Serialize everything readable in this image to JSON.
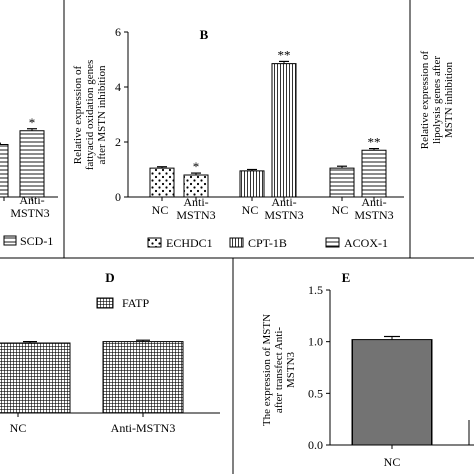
{
  "chart_data": [
    {
      "panel": "A",
      "type": "bar",
      "categories": [
        "",
        "Anti-MSTN3"
      ],
      "series": [
        {
          "name": "SCD-1",
          "values": [
            2.1,
            2.65
          ],
          "errors": [
            0.05,
            0.08
          ],
          "significance": [
            "",
            "*"
          ]
        }
      ],
      "ylim": [
        0,
        6
      ],
      "legend": [
        "SCD-1"
      ]
    },
    {
      "panel": "B",
      "type": "bar",
      "title": "B",
      "ylabel": "Relative expression of fattyacid oxidation genes after MSTN inhibition",
      "yticks": [
        "0",
        "2",
        "4",
        "6"
      ],
      "ylim": [
        0,
        6
      ],
      "group_labels": [
        [
          "NC",
          "Anti-MSTN3"
        ],
        [
          "NC",
          "Anti-MSTN3"
        ],
        [
          "NC",
          "Anti-MSTN3"
        ]
      ],
      "series": [
        {
          "name": "ECHDC1",
          "values": [
            1.05,
            0.8
          ],
          "errors": [
            0.05,
            0.07
          ],
          "significance": [
            "",
            "*"
          ]
        },
        {
          "name": "CPT-1B",
          "values": [
            0.95,
            4.85
          ],
          "errors": [
            0.05,
            0.08
          ],
          "significance": [
            "",
            "**"
          ]
        },
        {
          "name": "ACOX-1",
          "values": [
            1.05,
            1.7
          ],
          "errors": [
            0.07,
            0.06
          ],
          "significance": [
            "",
            "**"
          ]
        }
      ],
      "legend": [
        "ECHDC1",
        "CPT-1B",
        "ACOX-1"
      ]
    },
    {
      "panel": "C",
      "type": "bar",
      "ylabel": "Relative expression of lipolysis genes after MSTN inhibition"
    },
    {
      "panel": "D",
      "type": "bar",
      "title": "D",
      "categories": [
        "NC",
        "Anti-MSTN3"
      ],
      "series": [
        {
          "name": "FATP",
          "values": [
            1.0,
            1.02
          ],
          "errors": [
            0.02,
            0.02
          ]
        }
      ],
      "legend": [
        "FATP"
      ]
    },
    {
      "panel": "E",
      "type": "bar",
      "title": "E",
      "ylabel": "The expression of MSTN after transfect Anti-MSTN3",
      "yticks": [
        "0.0",
        "0.5",
        "1.0",
        "1.5"
      ],
      "ylim": [
        0,
        1.5
      ],
      "categories": [
        "NC",
        ""
      ],
      "series": [
        {
          "values": [
            1.02,
            0.0
          ],
          "errors": [
            0.03,
            0
          ]
        }
      ]
    }
  ]
}
